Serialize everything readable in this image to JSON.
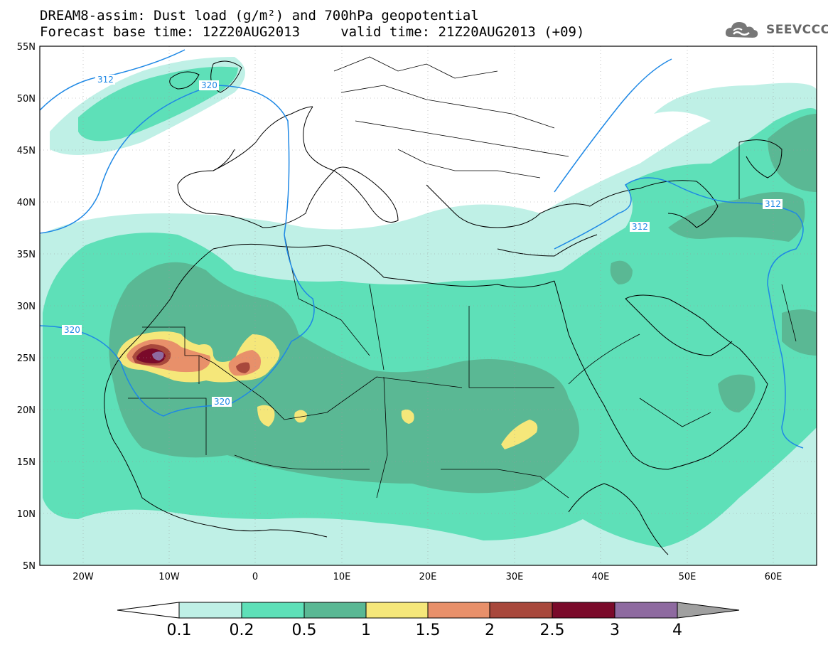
{
  "header": {
    "line1": "DREAM8-assim: Dust load (g/m²) and 700hPa geopotential",
    "line2": "Forecast base time: 12Z20AUG2013     valid time: 21Z20AUG2013 (+09)"
  },
  "logo": {
    "text": "SEEVCCC",
    "icon": "cloud-icon"
  },
  "map": {
    "lon_range": [
      -25,
      65
    ],
    "lat_range": [
      5,
      55
    ],
    "lat_ticks": [
      "55N",
      "50N",
      "45N",
      "40N",
      "35N",
      "30N",
      "25N",
      "20N",
      "15N",
      "10N",
      "5N"
    ],
    "lon_ticks": [
      "20W",
      "10W",
      "0",
      "10E",
      "20E",
      "30E",
      "40E",
      "50E",
      "60E"
    ],
    "geopotential_labels": [
      "312",
      "320",
      "320",
      "320",
      "312",
      "312"
    ]
  },
  "colorbar": {
    "labels": [
      "0.1",
      "0.2",
      "0.5",
      "1",
      "1.5",
      "2",
      "2.5",
      "3",
      "4"
    ],
    "colors": [
      "#bff0e6",
      "#5ee0b8",
      "#5ab894",
      "#f5e77a",
      "#e8906a",
      "#a8483c",
      "#7a0a2a",
      "#8e6aa0",
      "#a0a0a0"
    ]
  },
  "colors": {
    "level1": "#bff0e6",
    "level2": "#5ee0b8",
    "level3": "#5ab894",
    "level4": "#f5e77a",
    "level5": "#e8906a",
    "level6": "#a8483c",
    "level7": "#7a0a2a",
    "level8": "#8e6aa0",
    "contour": "#1e88e5"
  }
}
